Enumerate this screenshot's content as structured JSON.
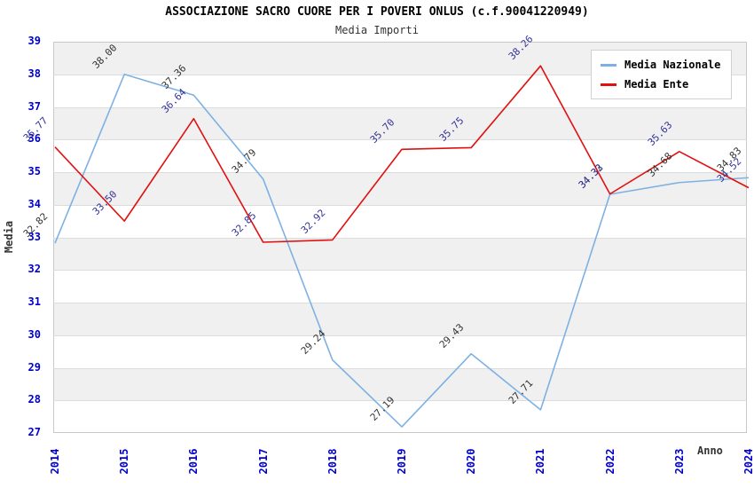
{
  "header": {
    "title": "ASSOCIAZIONE SACRO CUORE PER I POVERI ONLUS (c.f.90041220949)",
    "subtitle": "Media Importi"
  },
  "chart_data": {
    "type": "line",
    "x": [
      2014,
      2015,
      2016,
      2017,
      2018,
      2019,
      2020,
      2021,
      2022,
      2023,
      2024
    ],
    "series": [
      {
        "name": "Media Nazionale",
        "color": "#7DB1E3",
        "label_color": "#333333",
        "values": [
          32.82,
          38.0,
          37.36,
          34.79,
          29.24,
          27.19,
          29.43,
          27.71,
          34.32,
          34.68,
          34.83
        ]
      },
      {
        "name": "Media Ente",
        "color": "#E01010",
        "label_color": "#333399",
        "values": [
          35.77,
          33.5,
          36.64,
          32.85,
          32.92,
          35.7,
          35.75,
          38.26,
          34.33,
          35.63,
          34.52
        ]
      }
    ],
    "xlabel": "Anno",
    "ylabel": "Media",
    "ylim": [
      27,
      39
    ],
    "ytick_step": 1,
    "legend_position": "top-right",
    "grid": "horizontal-bands"
  },
  "colors": {
    "tick_label": "#0000CC",
    "axis_title": "#333333",
    "band": "#F0F0F0",
    "gridline": "#DCDCDC",
    "plot_border": "#C8C8C8"
  }
}
